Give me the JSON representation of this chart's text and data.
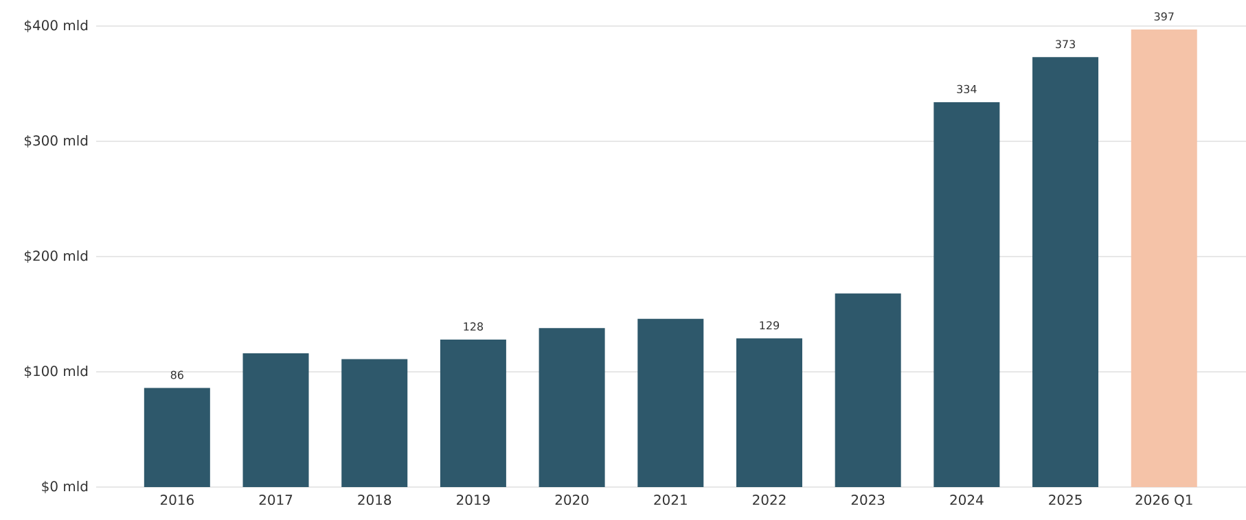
{
  "chart_data": {
    "type": "bar",
    "categories": [
      "2016",
      "2017",
      "2018",
      "2019",
      "2020",
      "2021",
      "2022",
      "2023",
      "2024",
      "2025",
      "2026 Q1"
    ],
    "values": [
      86,
      116,
      111,
      128,
      138,
      146,
      129,
      168,
      334,
      373,
      397
    ],
    "colors": [
      "#2e586b",
      "#2e586b",
      "#2e586b",
      "#2e586b",
      "#2e586b",
      "#2e586b",
      "#2e586b",
      "#2e586b",
      "#2e586b",
      "#2e586b",
      "#f5c3a8"
    ],
    "value_labels": [
      "86",
      null,
      null,
      "128",
      null,
      null,
      "129",
      null,
      "334",
      "373",
      "397"
    ],
    "ylim": [
      0,
      400
    ],
    "yticks": [
      {
        "value": 0,
        "label": "$0 mld"
      },
      {
        "value": 100,
        "label": "$100 mld"
      },
      {
        "value": 200,
        "label": "$200 mld"
      },
      {
        "value": 300,
        "label": "$300 mld"
      },
      {
        "value": 400,
        "label": "$400 mld"
      }
    ],
    "grid": "y"
  }
}
